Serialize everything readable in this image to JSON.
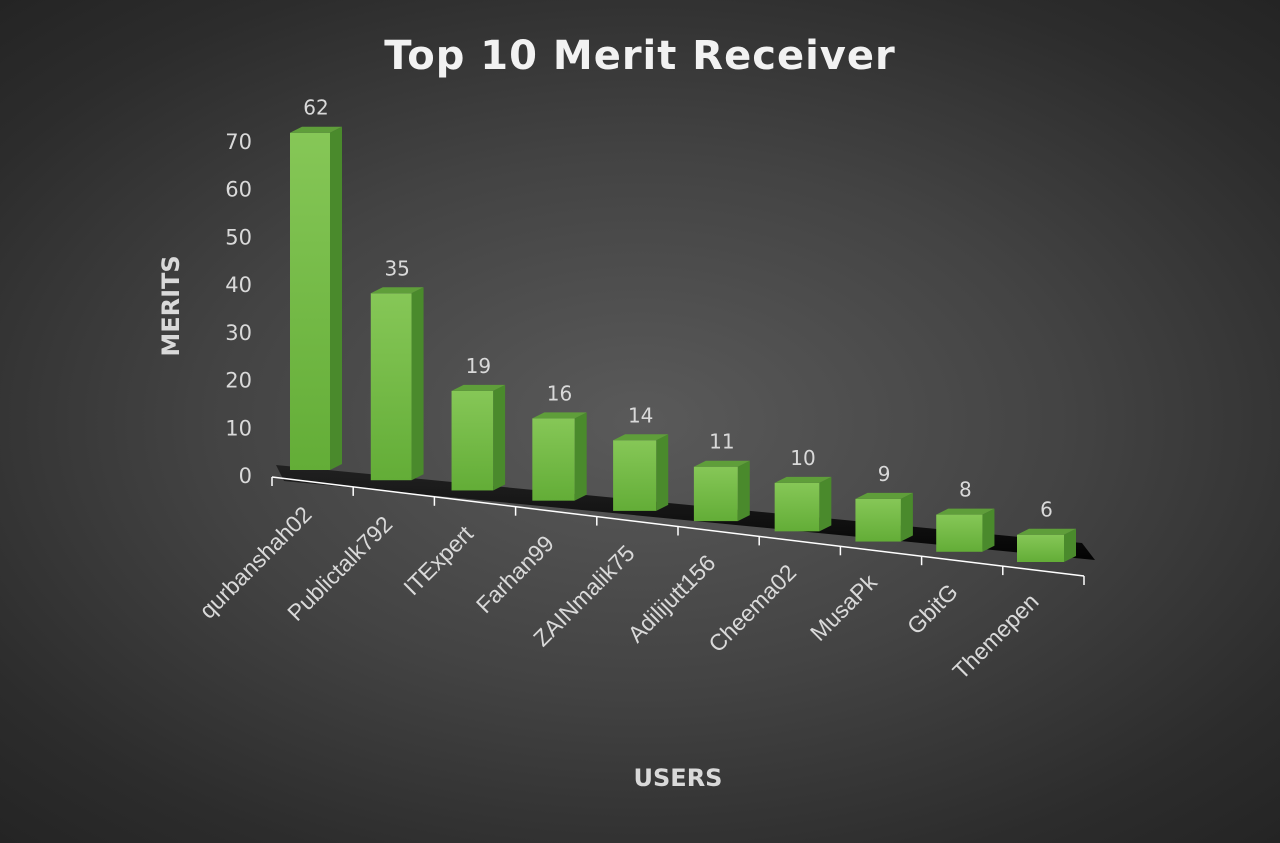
{
  "chart_data": {
    "type": "bar",
    "title": "Top 10 Merit Receiver",
    "xlabel": "USERS",
    "ylabel": "MERITS",
    "categories": [
      "qurbanshah02",
      "Publictalk792",
      "ITExpert",
      "Farhan99",
      "ZAINmalik75",
      "Adilijutt156",
      "Cheema02",
      "MusaPk",
      "GbitG",
      "Themepen"
    ],
    "values": [
      62,
      35,
      19,
      16,
      14,
      11,
      10,
      9,
      8,
      6
    ],
    "data_labels": [
      "62",
      "35",
      "19",
      "16",
      "14",
      "11",
      "10",
      "9",
      "8",
      "6"
    ],
    "yticks": [
      "0",
      "10",
      "20",
      "30",
      "40",
      "50",
      "60",
      "70"
    ],
    "ylim": [
      0,
      70
    ],
    "grid": false,
    "legend": "none",
    "colors": {
      "bar_front": "#7dc04d",
      "bar_side": "#4a8a2c",
      "bar_top": "#5f9e3a",
      "text": "#d9d9d9",
      "title": "#f2f2f2",
      "axis_line": "#ffffff"
    }
  }
}
